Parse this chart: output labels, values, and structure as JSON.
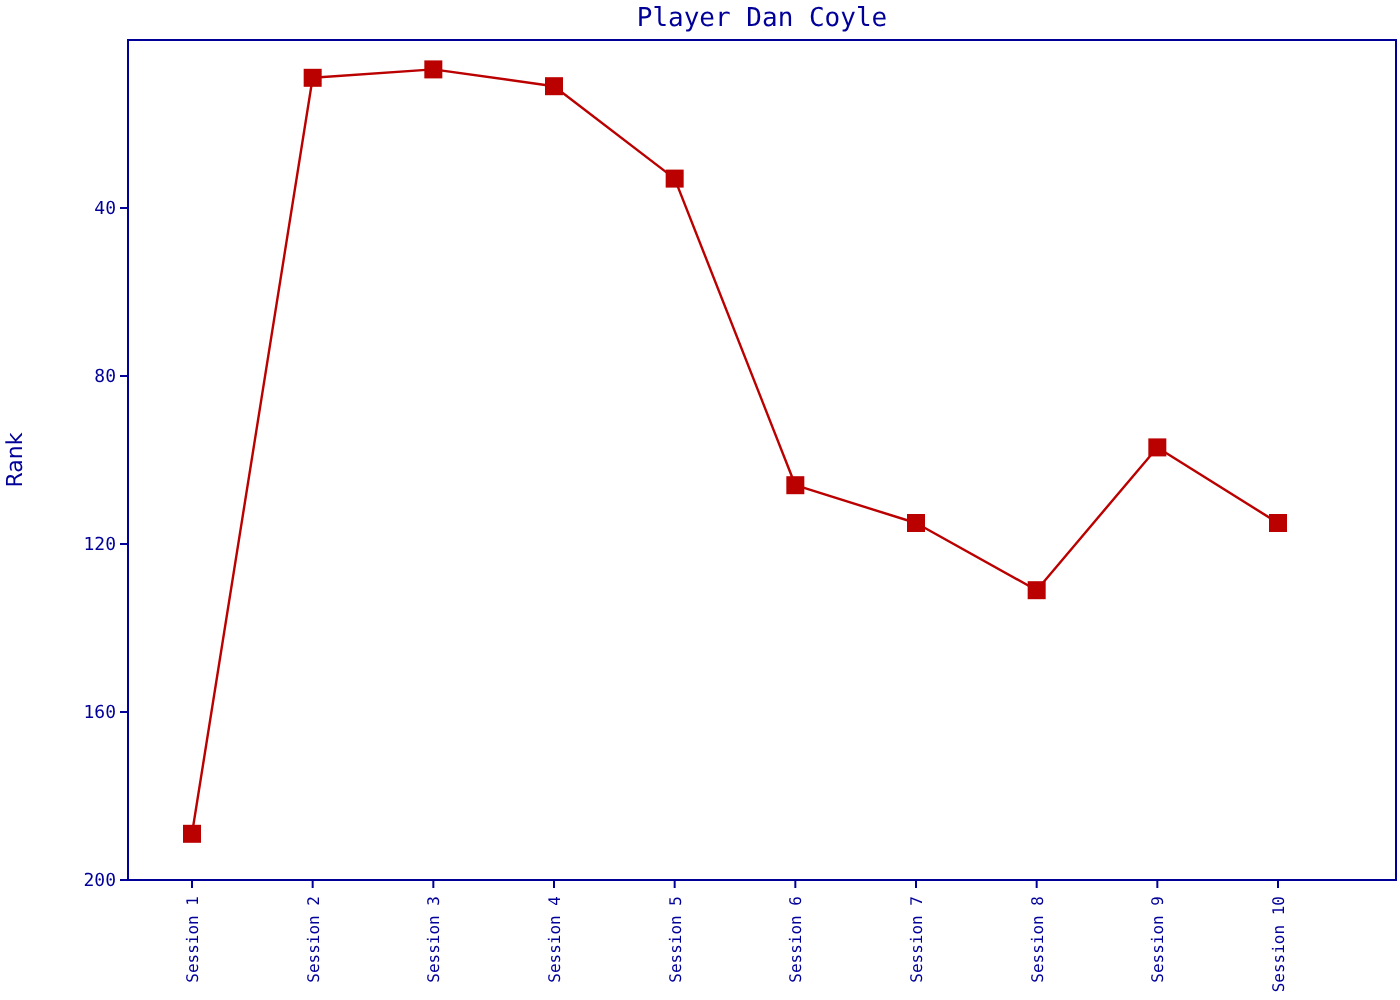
{
  "chart_data": {
    "type": "line",
    "title": "Player Dan Coyle",
    "ylabel": "Rank",
    "categories": [
      "Session 1",
      "Session 2",
      "Session 3",
      "Session 4",
      "Session 5",
      "Session 6",
      "Session 7",
      "Session 8",
      "Session 9",
      "Session 10"
    ],
    "series": [
      {
        "color": "#bb0000",
        "values": [
          189,
          9,
          7,
          11,
          33,
          106,
          115,
          131,
          97,
          115
        ]
      }
    ],
    "ylim": [
      200,
      0
    ],
    "yticks": [
      40,
      80,
      120,
      160,
      200
    ],
    "marker": "square",
    "line_style": "solid"
  }
}
